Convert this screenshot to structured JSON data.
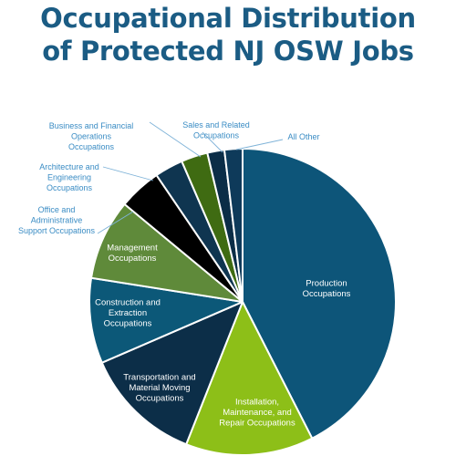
{
  "title_lines": [
    "Occupational Distribution",
    "of Protected NJ OSW Jobs"
  ],
  "chart_data": {
    "type": "pie",
    "title": "Occupational Distribution of Protected NJ OSW Jobs",
    "start_angle_deg": 0,
    "direction": "clockwise",
    "legend": "none",
    "slices": [
      {
        "label": [
          "Production",
          "Occupations"
        ],
        "value": 42.5,
        "color": "#0d5579",
        "label_style": "inside"
      },
      {
        "label": [
          "Installation,",
          "Maintenance, and",
          "Repair Occupations"
        ],
        "value": 13.5,
        "color": "#8dbf18",
        "label_style": "inside"
      },
      {
        "label": [
          "Transportation and",
          "Material Moving",
          "Occupations"
        ],
        "value": 12.5,
        "color": "#0c2e48",
        "label_style": "inside"
      },
      {
        "label": [
          "Construction and",
          "Extraction",
          "Occupations"
        ],
        "value": 9.0,
        "color": "#0c5878",
        "label_style": "inside"
      },
      {
        "label": [
          "Management",
          "Occupations"
        ],
        "value": 8.5,
        "color": "#5f8a3a",
        "label_style": "inside"
      },
      {
        "label": [
          "Office and",
          "Administrative",
          "Support Occupations"
        ],
        "value": 4.5,
        "color": "#000000",
        "label_style": "callout"
      },
      {
        "label": [
          "Architecture and",
          "Engineering",
          "Occupations"
        ],
        "value": 3.0,
        "color": "#0f3550",
        "label_style": "callout"
      },
      {
        "label": [
          "Business and Financial",
          "Operations",
          "Occupations"
        ],
        "value": 2.8,
        "color": "#3f6b12",
        "label_style": "callout"
      },
      {
        "label": [
          "Sales and Related",
          "Occupations"
        ],
        "value": 1.8,
        "color": "#0b2d47",
        "label_style": "callout"
      },
      {
        "label": [
          "All Other"
        ],
        "value": 1.9,
        "color": "#0e3a5a",
        "label_style": "callout"
      }
    ]
  }
}
